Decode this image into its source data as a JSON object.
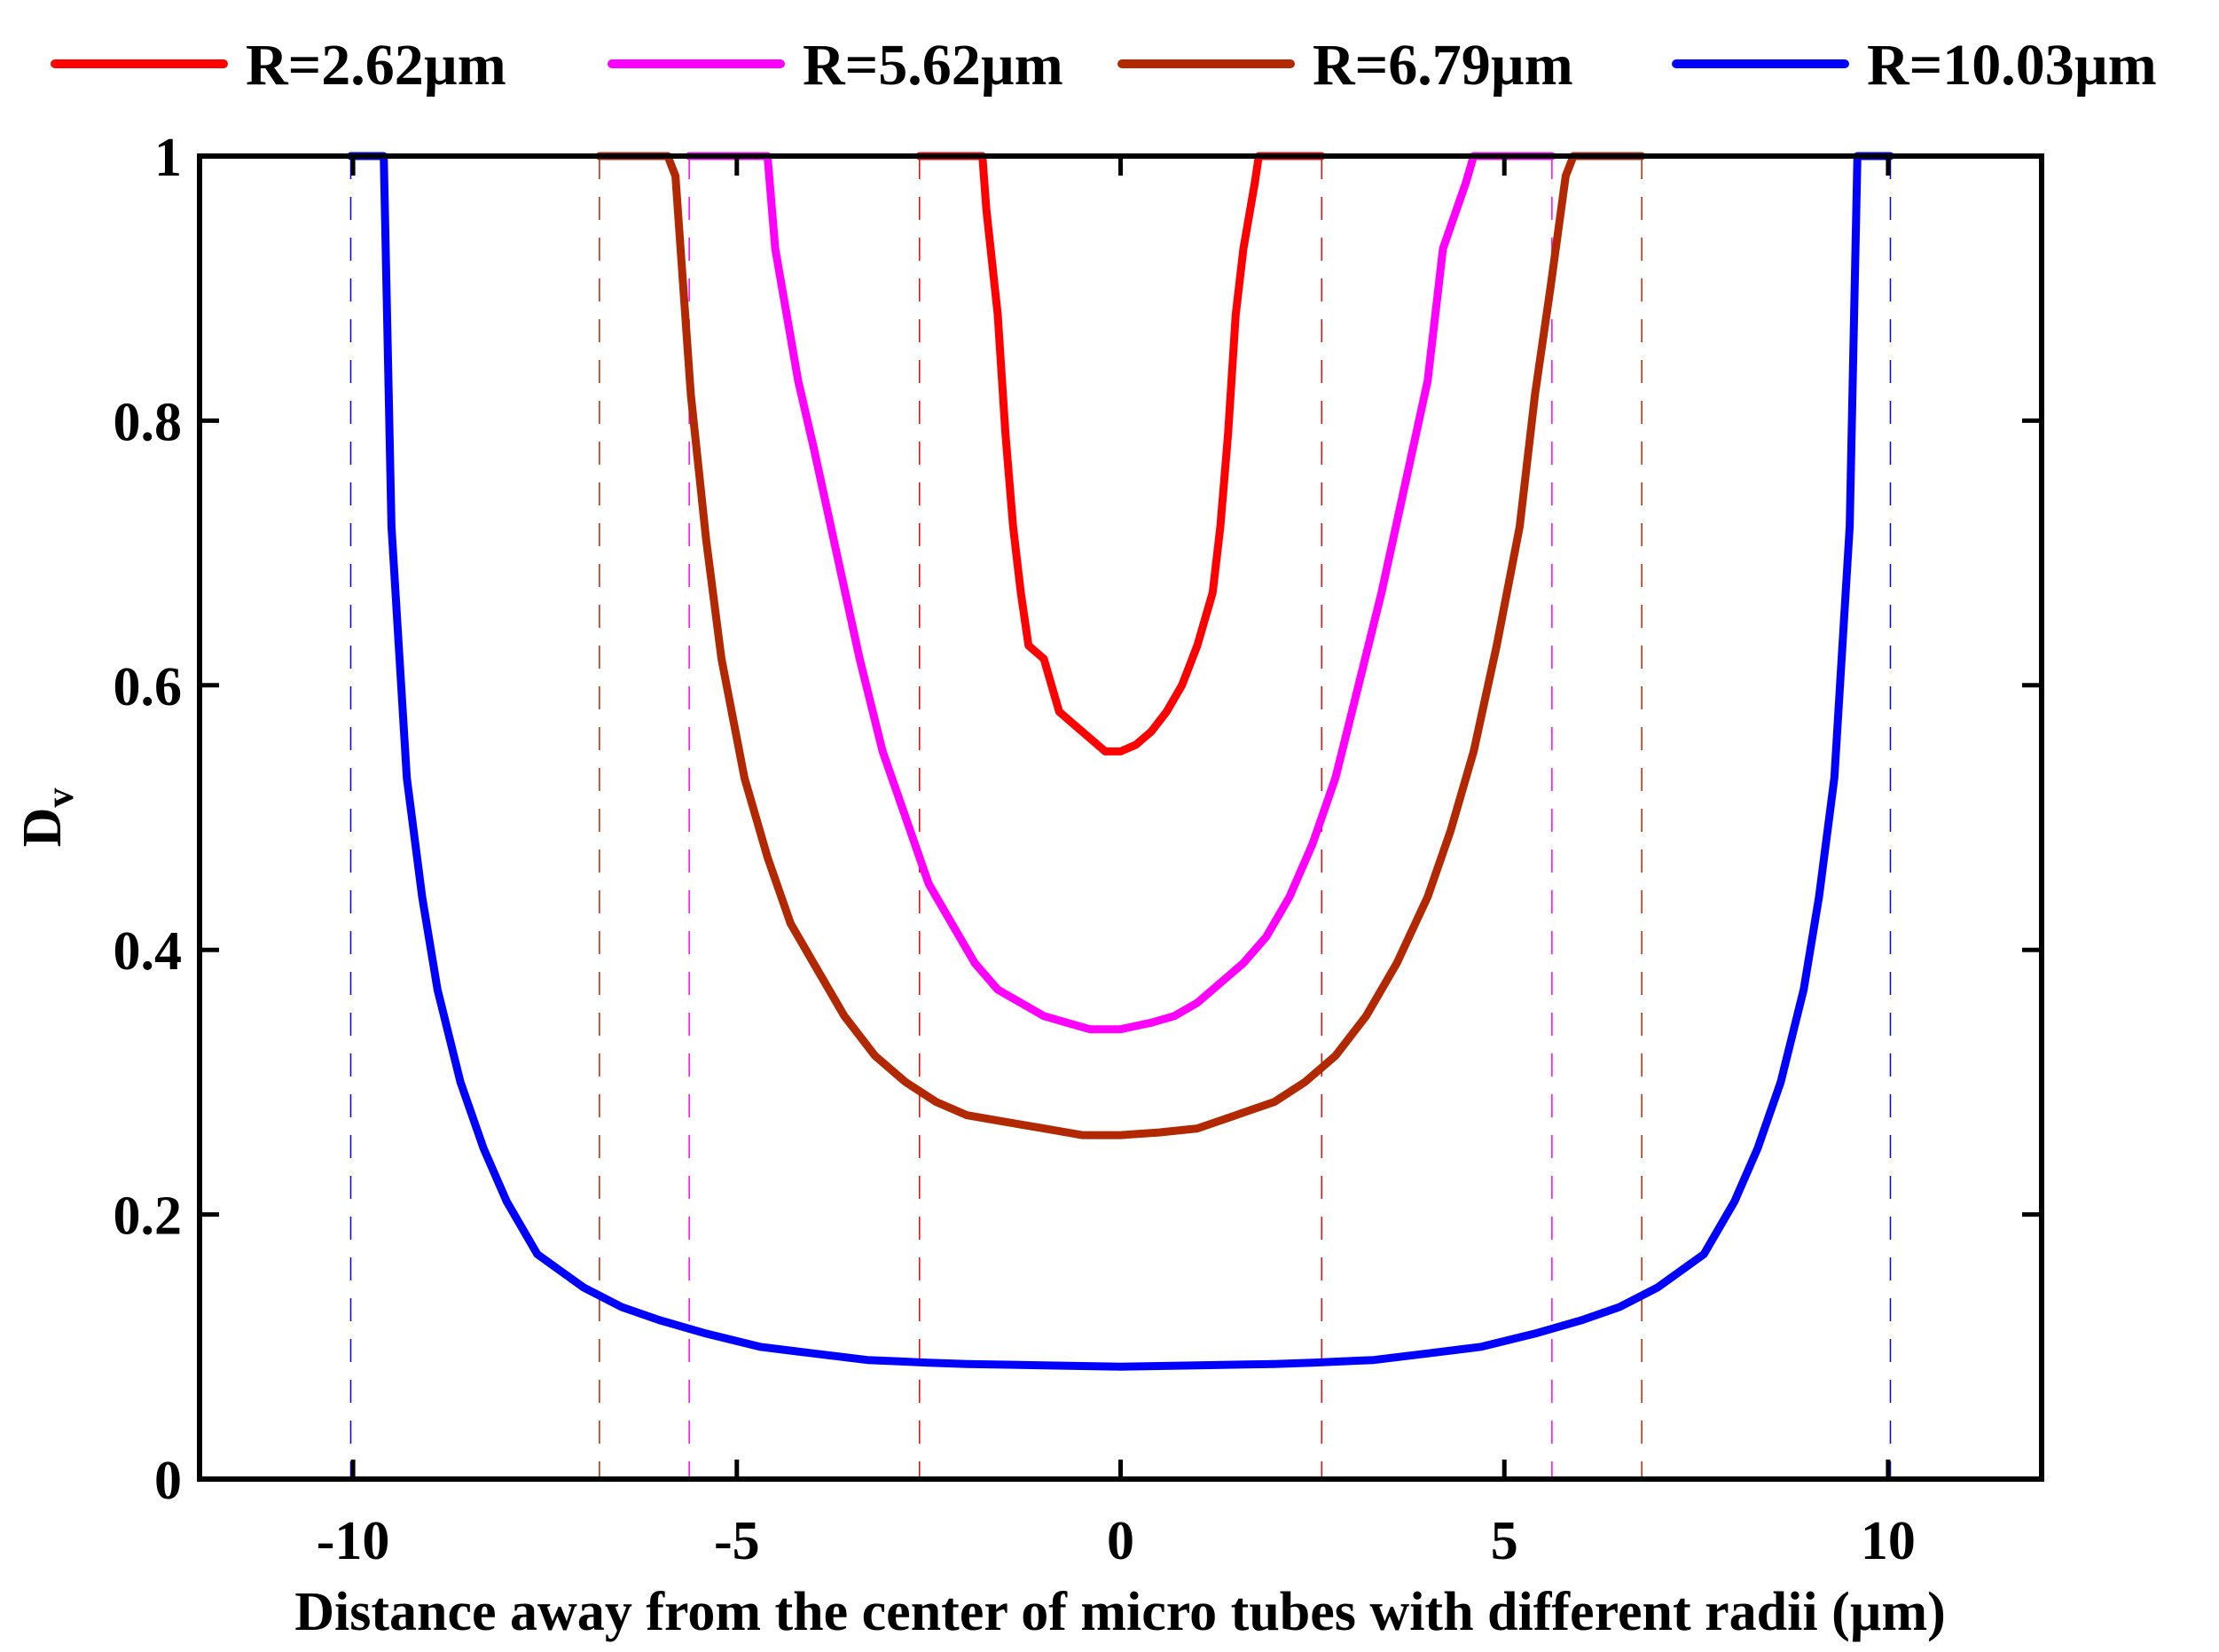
{
  "chart_data": {
    "type": "line",
    "title": "",
    "xlabel": "Distance away from the center of micro tubes with different radii (µm)",
    "ylabel_main": "D",
    "ylabel_sub": "v",
    "xlim": [
      -12,
      12
    ],
    "ylim": [
      0,
      1
    ],
    "xticks": [
      -10,
      -5,
      0,
      5,
      10
    ],
    "xtick_labels": [
      "-10",
      "-5",
      "0",
      "5",
      "10"
    ],
    "yticks": [
      0,
      0.2,
      0.4,
      0.6,
      0.8,
      1
    ],
    "ytick_labels": [
      "0",
      "0.2",
      "0.4",
      "0.6",
      "0.8",
      "1"
    ],
    "legend_position": "top",
    "series": [
      {
        "name": "R=2.62µm",
        "color": "#ff0000",
        "radius": 2.62,
        "x": [
          -2.62,
          -1.8,
          -1.75,
          -1.6,
          -1.5,
          -1.4,
          -1.3,
          -1.2,
          -1.0,
          -0.9,
          -0.8,
          -0.6,
          -0.4,
          -0.2,
          0,
          0.2,
          0.4,
          0.6,
          0.8,
          1.0,
          1.2,
          1.3,
          1.4,
          1.5,
          1.6,
          1.75,
          1.8,
          2.62
        ],
        "y": [
          1,
          1,
          0.96,
          0.88,
          0.79,
          0.72,
          0.67,
          0.63,
          0.62,
          0.6,
          0.58,
          0.57,
          0.56,
          0.55,
          0.55,
          0.555,
          0.565,
          0.58,
          0.6,
          0.63,
          0.67,
          0.72,
          0.79,
          0.88,
          0.93,
          0.98,
          1,
          1
        ]
      },
      {
        "name": "R=5.62µm",
        "color": "#ff00ff",
        "radius": 5.62,
        "x": [
          -5.62,
          -4.6,
          -4.5,
          -4.2,
          -4.0,
          -3.7,
          -3.4,
          -3.1,
          -2.8,
          -2.5,
          -2.2,
          -1.9,
          -1.6,
          -1.3,
          -1.0,
          -0.7,
          -0.4,
          0,
          0.4,
          0.7,
          1.0,
          1.3,
          1.6,
          1.9,
          2.2,
          2.5,
          2.8,
          3.1,
          3.4,
          3.7,
          4.0,
          4.2,
          4.5,
          4.6,
          5.62
        ],
        "y": [
          1,
          1,
          0.93,
          0.83,
          0.78,
          0.7,
          0.62,
          0.55,
          0.5,
          0.45,
          0.42,
          0.39,
          0.37,
          0.36,
          0.35,
          0.345,
          0.34,
          0.34,
          0.345,
          0.35,
          0.36,
          0.375,
          0.39,
          0.41,
          0.44,
          0.48,
          0.53,
          0.6,
          0.67,
          0.75,
          0.83,
          0.93,
          0.98,
          1,
          1
        ]
      },
      {
        "name": "R=6.79µm",
        "color": "#b22800",
        "radius": 6.79,
        "x": [
          -6.79,
          -5.9,
          -5.8,
          -5.6,
          -5.4,
          -5.2,
          -4.9,
          -4.6,
          -4.3,
          -4.0,
          -3.6,
          -3.2,
          -2.8,
          -2.4,
          -2.0,
          -1.5,
          -1.0,
          -0.5,
          0,
          0.5,
          1.0,
          1.5,
          2.0,
          2.4,
          2.8,
          3.2,
          3.6,
          4.0,
          4.3,
          4.6,
          4.9,
          5.2,
          5.4,
          5.6,
          5.8,
          5.9,
          6.79
        ],
        "y": [
          1,
          1,
          0.985,
          0.82,
          0.71,
          0.62,
          0.53,
          0.47,
          0.42,
          0.39,
          0.35,
          0.32,
          0.3,
          0.285,
          0.275,
          0.27,
          0.265,
          0.26,
          0.26,
          0.262,
          0.265,
          0.275,
          0.285,
          0.3,
          0.32,
          0.35,
          0.39,
          0.44,
          0.49,
          0.55,
          0.63,
          0.72,
          0.82,
          0.9,
          0.985,
          1,
          1
        ]
      },
      {
        "name": "R=10.03µm",
        "color": "#0000ff",
        "radius": 10.03,
        "x": [
          -10.03,
          -9.6,
          -9.5,
          -9.3,
          -9.1,
          -8.9,
          -8.6,
          -8.3,
          -8.0,
          -7.6,
          -7.0,
          -6.5,
          -6.0,
          -5.4,
          -4.7,
          -4.0,
          -3.3,
          -2.5,
          -2.0,
          -1.0,
          0,
          1.0,
          2.0,
          2.5,
          3.3,
          4.0,
          4.7,
          5.4,
          6.0,
          6.5,
          7.0,
          7.6,
          8.0,
          8.3,
          8.6,
          8.9,
          9.1,
          9.3,
          9.5,
          9.6,
          10.03
        ],
        "y": [
          1,
          1,
          0.72,
          0.53,
          0.44,
          0.37,
          0.3,
          0.25,
          0.21,
          0.17,
          0.145,
          0.13,
          0.12,
          0.11,
          0.1,
          0.095,
          0.09,
          0.088,
          0.087,
          0.086,
          0.085,
          0.086,
          0.087,
          0.088,
          0.09,
          0.095,
          0.1,
          0.11,
          0.12,
          0.13,
          0.145,
          0.17,
          0.21,
          0.25,
          0.3,
          0.37,
          0.44,
          0.53,
          0.72,
          1,
          1
        ]
      }
    ]
  }
}
